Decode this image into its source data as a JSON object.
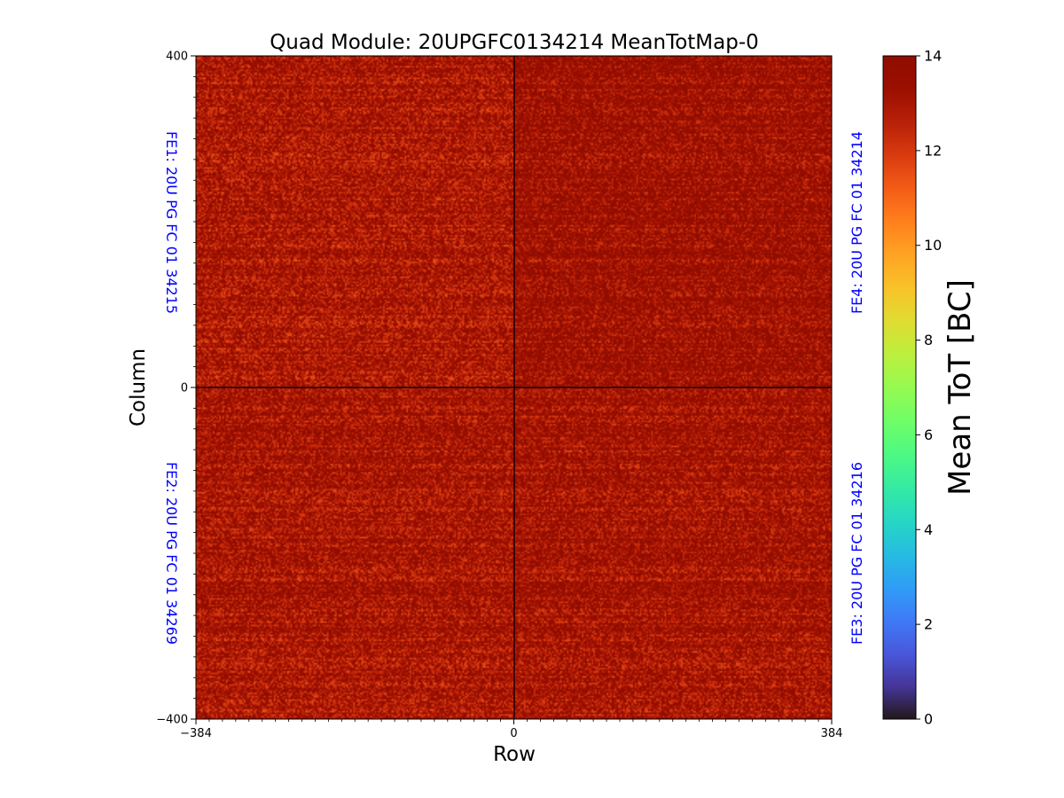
{
  "chart_data": {
    "type": "heatmap",
    "title": "Quad Module: 20UPGFC0134214 MeanTotMap-0",
    "xlabel": "Row",
    "ylabel": "Column",
    "xlim": [
      -384,
      384
    ],
    "ylim": [
      -400,
      400
    ],
    "x_ticks": [
      -384,
      0,
      384
    ],
    "y_ticks": [
      400,
      0,
      -400
    ],
    "x_tick_labels": [
      "−384",
      "0",
      "384"
    ],
    "y_tick_labels": [
      "400",
      "0",
      "−400"
    ],
    "colorbar": {
      "label": "Mean ToT [BC]",
      "min": 0,
      "max": 14,
      "ticks": [
        0,
        2,
        4,
        6,
        8,
        10,
        12,
        14
      ],
      "colormap": "turbo"
    },
    "chips": [
      {
        "label": "FE1: 20U PG FC 01 34215",
        "side": "left",
        "x_range": [
          -384,
          0
        ],
        "y_range": [
          0,
          400
        ],
        "mean_tot": 13.0
      },
      {
        "label": "FE4: 20U PG FC 01 34214",
        "side": "right",
        "x_range": [
          0,
          384
        ],
        "y_range": [
          0,
          400
        ],
        "mean_tot": 13.4
      },
      {
        "label": "FE2: 20U PG FC 01 34269",
        "side": "left",
        "x_range": [
          -384,
          0
        ],
        "y_range": [
          -400,
          0
        ],
        "mean_tot": 13.1
      },
      {
        "label": "FE3: 20U PG FC 01 34216",
        "side": "right",
        "x_range": [
          0,
          384
        ],
        "y_range": [
          -400,
          0
        ],
        "mean_tot": 13.2
      }
    ],
    "chip_label_color": "#0000ff",
    "grid": false,
    "legend": "none"
  }
}
